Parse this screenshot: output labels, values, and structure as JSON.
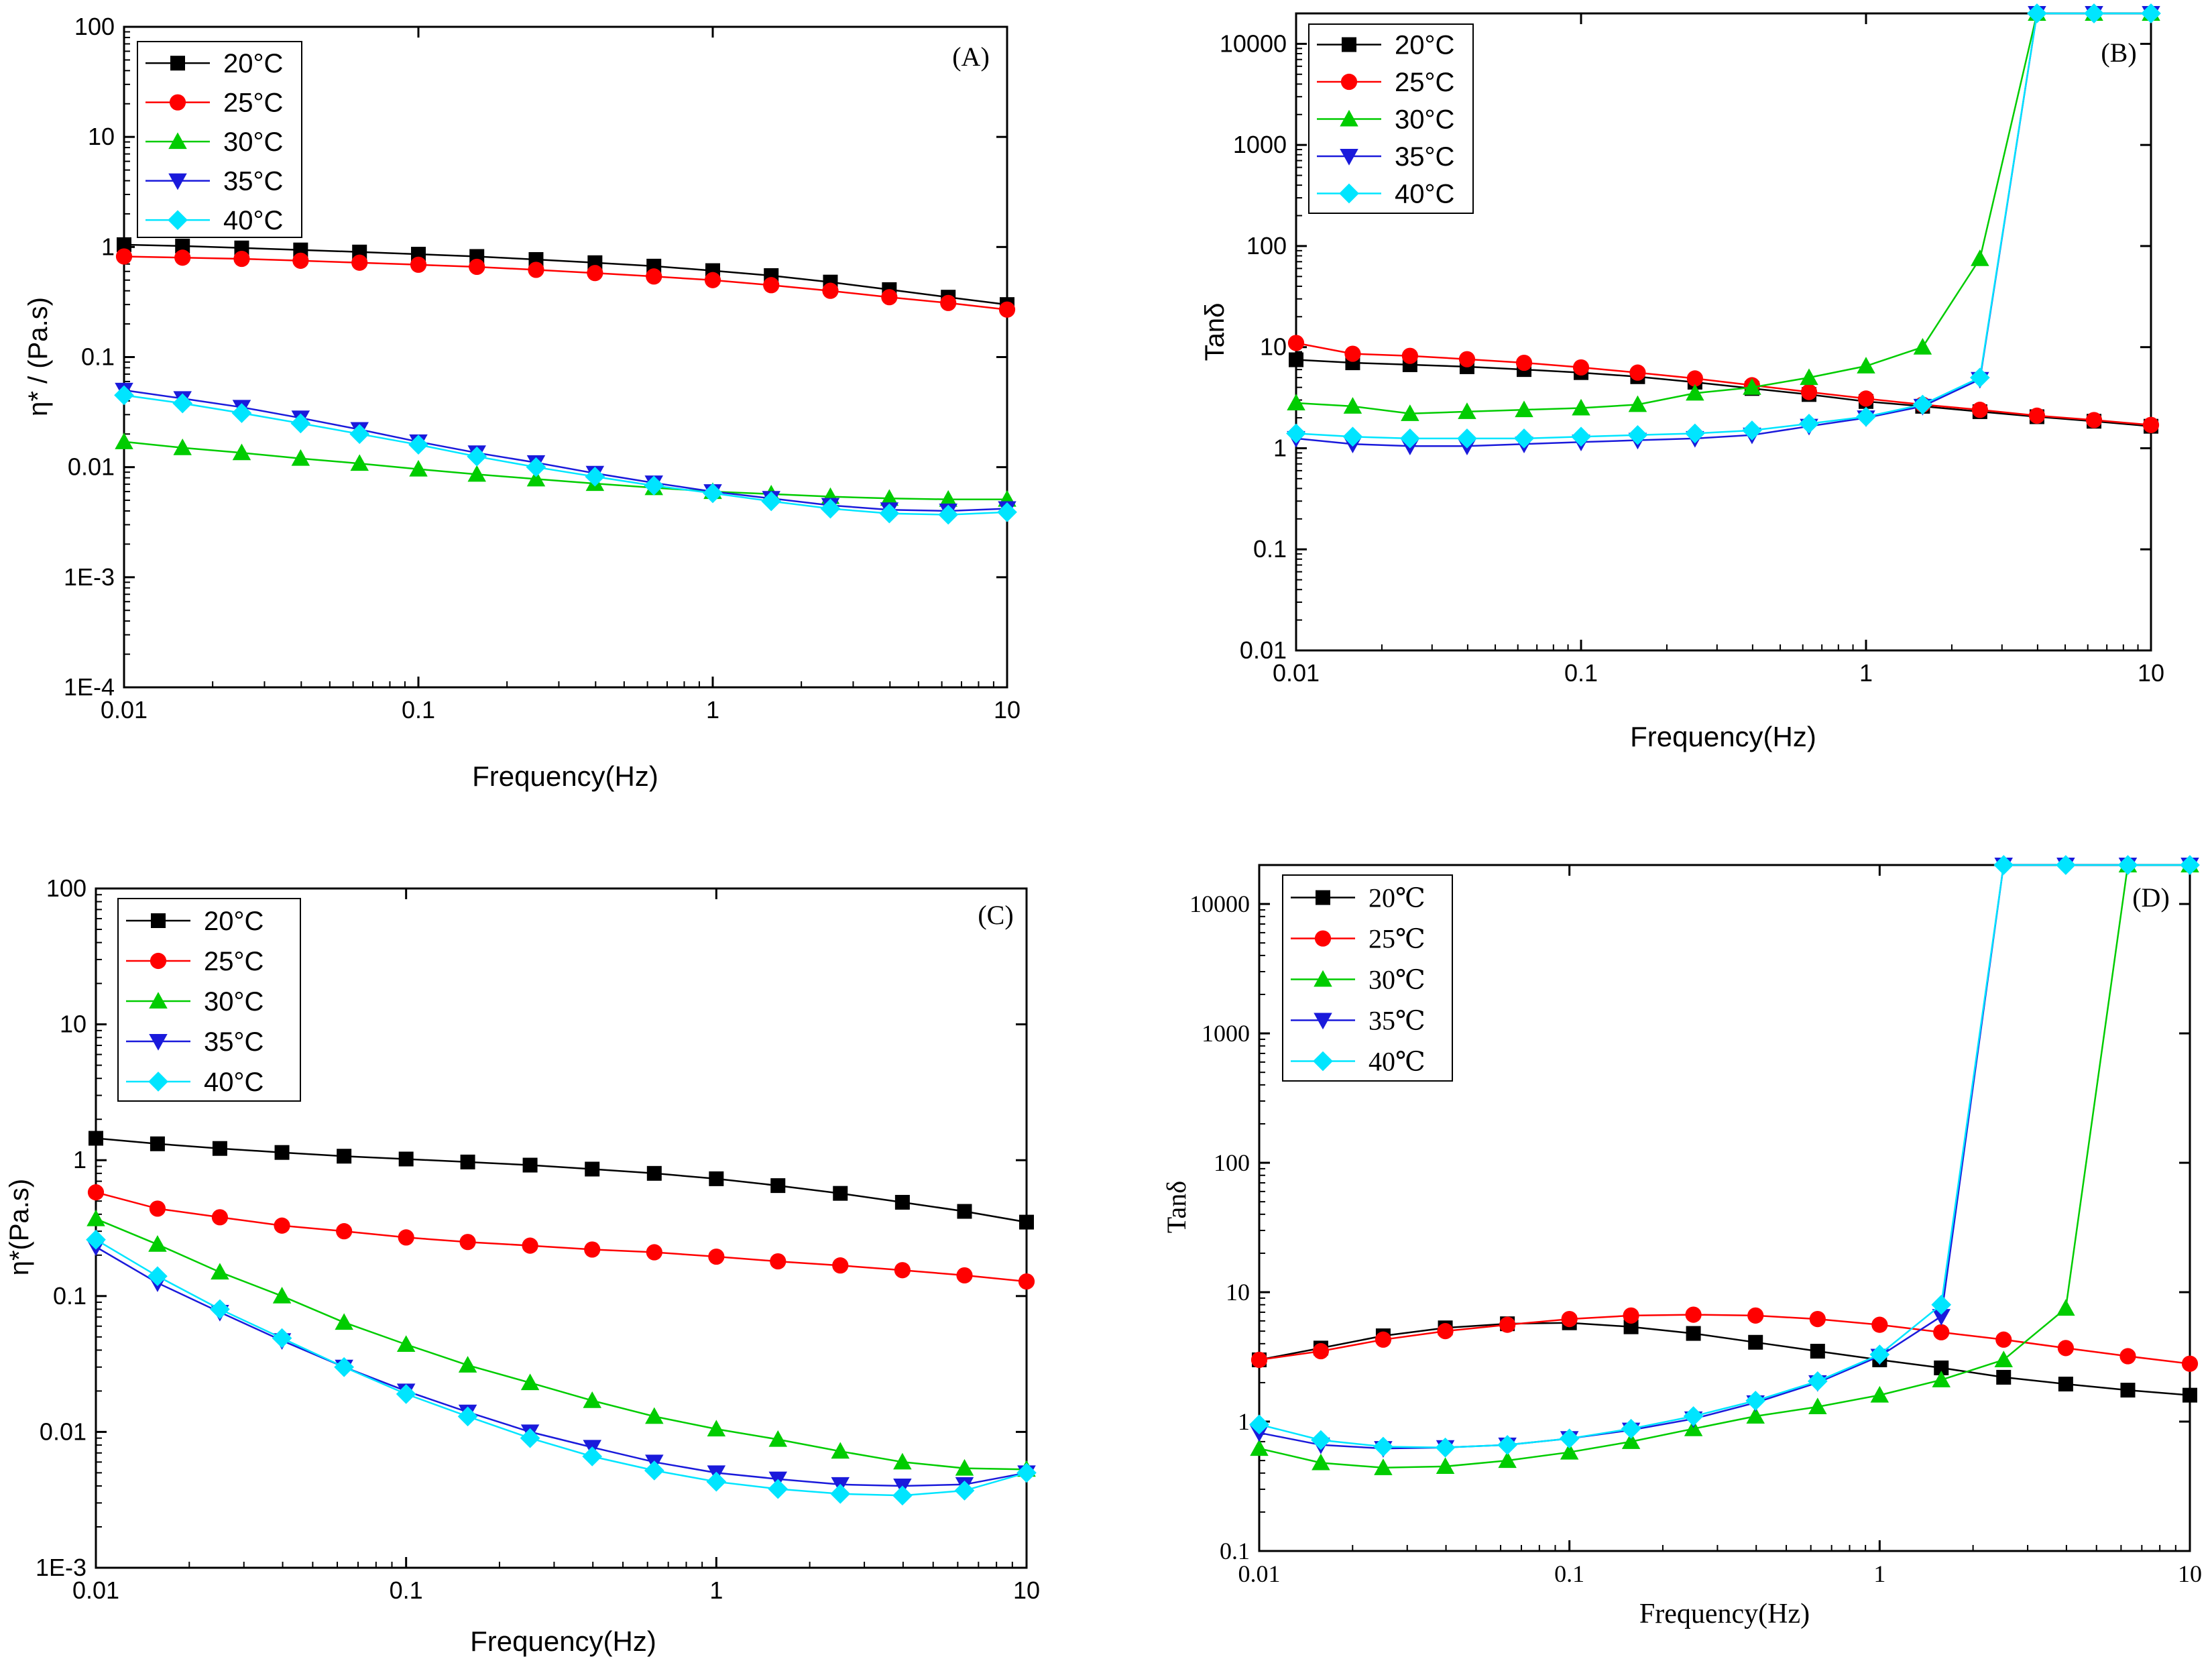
{
  "figure": {
    "panels": [
      {
        "id": "A",
        "panel_label": "(A)",
        "ylabel": "η* / (Pa.s)",
        "xlabel": "Frequency(Hz)"
      },
      {
        "id": "B",
        "panel_label": "(B)",
        "ylabel": "Tanδ",
        "xlabel": "Frequency(Hz)"
      },
      {
        "id": "C",
        "panel_label": "(C)",
        "ylabel": "η*(Pa.s)",
        "xlabel": "Frequency(Hz)"
      },
      {
        "id": "D",
        "panel_label": "(D)",
        "ylabel": "Tanδ",
        "xlabel": "Frequency(Hz)"
      }
    ]
  },
  "series_style": {
    "20": {
      "color": "#000000",
      "marker": "square"
    },
    "25": {
      "color": "#ff0000",
      "marker": "circle"
    },
    "30": {
      "color": "#00cc00",
      "marker": "triangle-up"
    },
    "35": {
      "color": "#1a1adb",
      "marker": "triangle-down"
    },
    "40": {
      "color": "#00e5ff",
      "marker": "diamond"
    }
  },
  "chart_data": [
    {
      "type": "line",
      "panel": "(A)",
      "xscale": "log",
      "yscale": "log",
      "xlim": [
        0.01,
        10
      ],
      "ylim": [
        0.0001,
        100
      ],
      "xlabel": "Frequency(Hz)",
      "ylabel": "η* / (Pa.s)",
      "x_ticks": [
        "0.01",
        "0.1",
        "1",
        "10"
      ],
      "y_ticks": [
        "1E-4",
        "1E-3",
        "0.01",
        "0.1",
        "1",
        "10",
        "100"
      ],
      "legend_position": "top-left",
      "x": [
        0.01,
        0.0158,
        0.0251,
        0.0398,
        0.0631,
        0.1,
        0.158,
        0.251,
        0.398,
        0.631,
        1.0,
        1.58,
        2.51,
        3.98,
        6.31,
        10.0
      ],
      "series": [
        {
          "name": "20°C",
          "key": "20",
          "values": [
            1.05,
            1.02,
            0.98,
            0.94,
            0.9,
            0.86,
            0.82,
            0.77,
            0.72,
            0.67,
            0.61,
            0.55,
            0.48,
            0.41,
            0.35,
            0.3
          ]
        },
        {
          "name": "25°C",
          "key": "25",
          "values": [
            0.82,
            0.8,
            0.78,
            0.75,
            0.72,
            0.69,
            0.66,
            0.62,
            0.58,
            0.54,
            0.5,
            0.45,
            0.4,
            0.35,
            0.31,
            0.27
          ]
        },
        {
          "name": "30°C",
          "key": "30",
          "values": [
            0.017,
            0.015,
            0.0135,
            0.012,
            0.0108,
            0.0096,
            0.0086,
            0.0078,
            0.0071,
            0.0065,
            0.006,
            0.0057,
            0.0054,
            0.0052,
            0.0051,
            0.0051
          ]
        },
        {
          "name": "35°C",
          "key": "35",
          "values": [
            0.05,
            0.042,
            0.035,
            0.028,
            0.022,
            0.017,
            0.0135,
            0.011,
            0.0088,
            0.0072,
            0.006,
            0.0052,
            0.0045,
            0.0041,
            0.004,
            0.0042
          ]
        },
        {
          "name": "40°C",
          "key": "40",
          "values": [
            0.045,
            0.038,
            0.031,
            0.025,
            0.02,
            0.016,
            0.0125,
            0.01,
            0.0082,
            0.0068,
            0.0058,
            0.0049,
            0.0042,
            0.0038,
            0.0037,
            0.0039
          ]
        }
      ]
    },
    {
      "type": "line",
      "panel": "(B)",
      "xscale": "log",
      "yscale": "log",
      "xlim": [
        0.01,
        10
      ],
      "ylim": [
        0.01,
        20000
      ],
      "xlabel": "Frequency(Hz)",
      "ylabel": "Tanδ",
      "x_ticks": [
        "0.01",
        "0.1",
        "1",
        "10"
      ],
      "y_ticks": [
        "0.01",
        "0.1",
        "1",
        "10",
        "100",
        "1000",
        "10000"
      ],
      "legend_position": "top-left",
      "x": [
        0.01,
        0.0158,
        0.0251,
        0.0398,
        0.0631,
        0.1,
        0.158,
        0.251,
        0.398,
        0.631,
        1.0,
        1.58,
        2.51,
        3.98,
        6.31,
        10.0
      ],
      "series": [
        {
          "name": "20°C",
          "key": "20",
          "values": [
            7.5,
            7.0,
            6.7,
            6.4,
            6.0,
            5.6,
            5.1,
            4.5,
            3.9,
            3.4,
            2.9,
            2.6,
            2.3,
            2.05,
            1.85,
            1.65
          ]
        },
        {
          "name": "25°C",
          "key": "25",
          "values": [
            11,
            8.6,
            8.2,
            7.6,
            7.0,
            6.3,
            5.6,
            4.9,
            4.2,
            3.6,
            3.1,
            2.7,
            2.4,
            2.1,
            1.9,
            1.7
          ]
        },
        {
          "name": "30°C",
          "key": "30",
          "values": [
            2.8,
            2.6,
            2.2,
            2.3,
            2.4,
            2.5,
            2.7,
            3.5,
            4.0,
            5.0,
            6.5,
            10,
            75,
            20000,
            20000,
            20000
          ]
        },
        {
          "name": "35°C",
          "key": "35",
          "values": [
            1.25,
            1.1,
            1.05,
            1.05,
            1.1,
            1.15,
            1.2,
            1.25,
            1.35,
            1.65,
            2.0,
            2.6,
            4.8,
            20000,
            20000,
            20000
          ]
        },
        {
          "name": "40°C",
          "key": "40",
          "values": [
            1.4,
            1.3,
            1.25,
            1.25,
            1.25,
            1.3,
            1.35,
            1.4,
            1.5,
            1.75,
            2.05,
            2.7,
            5.0,
            20000,
            20000,
            20000
          ]
        }
      ]
    },
    {
      "type": "line",
      "panel": "(C)",
      "xscale": "log",
      "yscale": "log",
      "xlim": [
        0.01,
        10
      ],
      "ylim": [
        0.001,
        100
      ],
      "xlabel": "Frequency(Hz)",
      "ylabel": "η*(Pa.s)",
      "x_ticks": [
        "0.01",
        "0.1",
        "1",
        "10"
      ],
      "y_ticks": [
        "1E-3",
        "0.01",
        "0.1",
        "1",
        "10",
        "100"
      ],
      "legend_position": "top-left",
      "x": [
        0.01,
        0.0158,
        0.0251,
        0.0398,
        0.0631,
        0.1,
        0.158,
        0.251,
        0.398,
        0.631,
        1.0,
        1.58,
        2.51,
        3.98,
        6.31,
        10.0
      ],
      "series": [
        {
          "name": "20°C",
          "key": "20",
          "values": [
            1.45,
            1.32,
            1.22,
            1.14,
            1.07,
            1.02,
            0.97,
            0.92,
            0.86,
            0.8,
            0.73,
            0.65,
            0.57,
            0.49,
            0.42,
            0.35
          ]
        },
        {
          "name": "25°C",
          "key": "25",
          "values": [
            0.58,
            0.44,
            0.38,
            0.33,
            0.3,
            0.27,
            0.25,
            0.235,
            0.22,
            0.21,
            0.195,
            0.18,
            0.168,
            0.155,
            0.142,
            0.128
          ]
        },
        {
          "name": "30°C",
          "key": "30",
          "values": [
            0.37,
            0.24,
            0.15,
            0.1,
            0.064,
            0.044,
            0.031,
            0.023,
            0.017,
            0.013,
            0.0105,
            0.0088,
            0.0072,
            0.006,
            0.0054,
            0.0053
          ]
        },
        {
          "name": "35°C",
          "key": "35",
          "values": [
            0.23,
            0.125,
            0.076,
            0.047,
            0.03,
            0.02,
            0.014,
            0.01,
            0.0077,
            0.006,
            0.005,
            0.0045,
            0.0041,
            0.004,
            0.0041,
            0.005
          ]
        },
        {
          "name": "40°C",
          "key": "40",
          "values": [
            0.26,
            0.14,
            0.08,
            0.049,
            0.03,
            0.019,
            0.013,
            0.009,
            0.0066,
            0.0052,
            0.0043,
            0.0038,
            0.0035,
            0.0034,
            0.0037,
            0.005
          ]
        }
      ]
    },
    {
      "type": "line",
      "panel": "(D)",
      "xscale": "log",
      "yscale": "log",
      "xlim": [
        0.01,
        10
      ],
      "ylim": [
        0.1,
        20000
      ],
      "xlabel": "Frequency(Hz)",
      "ylabel": "Tanδ",
      "x_ticks": [
        "0.01",
        "0.1",
        "1",
        "10"
      ],
      "y_ticks": [
        "0.1",
        "1",
        "10",
        "100",
        "1000",
        "10000"
      ],
      "legend_position": "top-left",
      "x": [
        0.01,
        0.0158,
        0.0251,
        0.0398,
        0.0631,
        0.1,
        0.158,
        0.251,
        0.398,
        0.631,
        1.0,
        1.58,
        2.51,
        3.98,
        6.31,
        10.0
      ],
      "series": [
        {
          "name": "20℃",
          "key": "20",
          "values": [
            3.0,
            3.7,
            4.6,
            5.3,
            5.7,
            5.8,
            5.4,
            4.8,
            4.1,
            3.5,
            3.0,
            2.6,
            2.2,
            1.95,
            1.75,
            1.6
          ]
        },
        {
          "name": "25℃",
          "key": "25",
          "values": [
            3.0,
            3.5,
            4.3,
            5.0,
            5.6,
            6.2,
            6.6,
            6.7,
            6.6,
            6.2,
            5.6,
            4.9,
            4.3,
            3.7,
            3.2,
            2.8
          ]
        },
        {
          "name": "30℃",
          "key": "30",
          "values": [
            0.62,
            0.48,
            0.44,
            0.45,
            0.5,
            0.58,
            0.7,
            0.88,
            1.1,
            1.3,
            1.6,
            2.1,
            3.0,
            7.5,
            20000,
            20000
          ]
        },
        {
          "name": "35℃",
          "key": "35",
          "values": [
            0.82,
            0.66,
            0.62,
            0.63,
            0.66,
            0.74,
            0.86,
            1.05,
            1.4,
            2.0,
            3.2,
            6.5,
            20000,
            20000,
            20000,
            20000
          ]
        },
        {
          "name": "40℃",
          "key": "40",
          "values": [
            0.95,
            0.72,
            0.64,
            0.63,
            0.66,
            0.74,
            0.88,
            1.1,
            1.45,
            2.05,
            3.3,
            8.0,
            20000,
            20000,
            20000,
            20000
          ]
        }
      ]
    }
  ]
}
